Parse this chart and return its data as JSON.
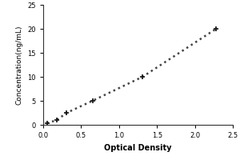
{
  "x_data": [
    0.05,
    0.18,
    0.31,
    0.65,
    1.31,
    2.28
  ],
  "y_data": [
    0.31,
    1.0,
    2.5,
    5.0,
    10.0,
    20.0
  ],
  "x_label": "Optical Density",
  "y_label": "Concentration(ng/mL)",
  "xlim": [
    0,
    2.5
  ],
  "ylim": [
    0,
    25
  ],
  "xticks": [
    0,
    0.5,
    1,
    1.5,
    2,
    2.5
  ],
  "yticks": [
    0,
    5,
    10,
    15,
    20,
    25
  ],
  "line_color": "#444444",
  "marker_color": "#111111",
  "line_style": "dotted",
  "line_width": 1.8,
  "marker_size": 5,
  "bg_color": "#ffffff"
}
